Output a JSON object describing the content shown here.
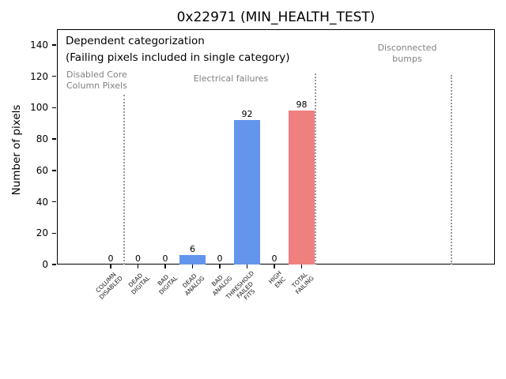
{
  "colors": {
    "bar_blue": "#6495ED",
    "bar_red": "#F08080",
    "region_label_gray": "#808080",
    "separator_gray": "#999999",
    "axis_black": "#000000"
  },
  "chart_data": {
    "type": "bar",
    "title": "0x22971 (MIN_HEALTH_TEST)",
    "xlabel": "",
    "ylabel": "Number of pixels",
    "ylim": [
      0,
      150
    ],
    "yticks": [
      0,
      20,
      40,
      60,
      80,
      100,
      120,
      140
    ],
    "grid": false,
    "legend_position": "none",
    "categories": [
      "COLUMN\nDISABLED",
      "DEAD\nDIGITAL",
      "BAD\nDIGITAL",
      "DEAD\nANALOG",
      "BAD\nANALOG",
      "THRESHOLD\nFAILED\nFITS",
      "HIGH\nENC",
      "TOTAL\nFAILING"
    ],
    "values": [
      0,
      0,
      0,
      6,
      0,
      92,
      0,
      98
    ],
    "bar_value_labels": [
      "0",
      "0",
      "0",
      "6",
      "0",
      "92",
      "0",
      "98"
    ],
    "bar_colors": [
      "#6495ED",
      "#6495ED",
      "#6495ED",
      "#6495ED",
      "#6495ED",
      "#6495ED",
      "#6495ED",
      "#F08080"
    ],
    "annotations": {
      "dependent_categorization": "Dependent categorization",
      "failing_note": "(Failing pixels included in single category)",
      "disabled_core": "Disabled Core\nColumn Pixels",
      "electrical_failures": "Electrical failures",
      "disconnected_bumps": "Disconnected\nbumps"
    },
    "separators": [
      {
        "x_index": 0.5,
        "top_value": 108
      },
      {
        "x_index": 7.5,
        "top_value": 122
      },
      {
        "x_index": 12.5,
        "top_value": 121
      }
    ]
  }
}
